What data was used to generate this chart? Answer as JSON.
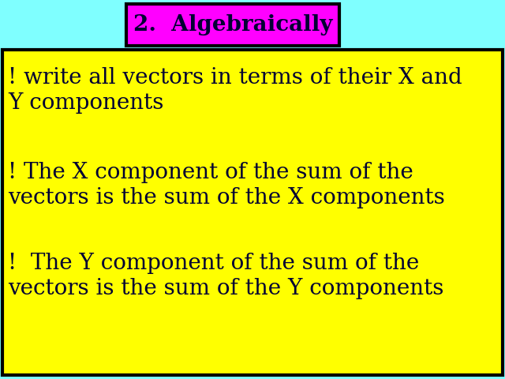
{
  "bg_color": "#7fffff",
  "title_text": "2.  Algebraically",
  "title_bg": "#ff00ff",
  "title_border": "#000000",
  "box_bg": "#ffff00",
  "box_border": "#000000",
  "text_color": "#000033",
  "bullet1_line1": "! write all vectors in terms of their X and",
  "bullet1_line2": "Y components",
  "bullet2_line1": "! The X component of the sum of the",
  "bullet2_line2": "vectors is the sum of the X components",
  "bullet3_line1": "!  The Y component of the sum of the",
  "bullet3_line2": "vectors is the sum of the Y components",
  "font_size_title": 20,
  "font_size_body": 20
}
